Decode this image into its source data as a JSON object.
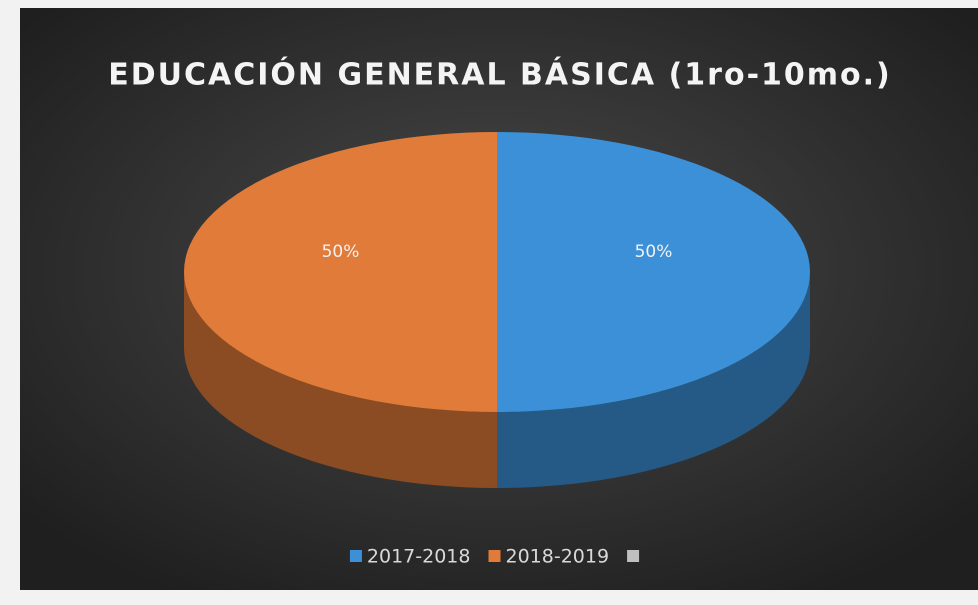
{
  "chart_data": {
    "type": "pie3d",
    "title": "EDUCACIÓN GENERAL BÁSICA (1ro-10mo.)",
    "categories": [
      "2017-2018",
      "2018-2019",
      null
    ],
    "values": [
      50,
      50,
      0
    ],
    "value_labels": [
      "50%",
      "50%",
      null
    ],
    "colors": [
      "#3b90d8",
      "#e07b39",
      "#bfbfbf"
    ],
    "legend": "bottom"
  }
}
